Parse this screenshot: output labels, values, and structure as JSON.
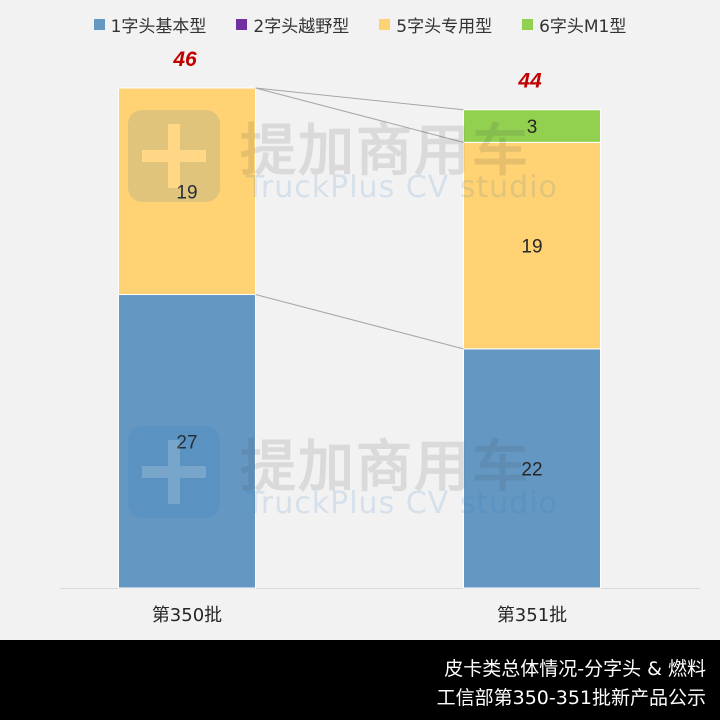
{
  "chart_data": {
    "type": "bar",
    "stacked": true,
    "categories": [
      "第350批",
      "第351批"
    ],
    "series": [
      {
        "name": "1字头基本型",
        "values": [
          27,
          22
        ],
        "color": "#6498c3"
      },
      {
        "name": "2字头越野型",
        "values": [
          0,
          0
        ],
        "color": "#7030a0"
      },
      {
        "name": "5字头专用型",
        "values": [
          19,
          19
        ],
        "color": "#ffd273"
      },
      {
        "name": "6字头M1型",
        "values": [
          0,
          3
        ],
        "color": "#92d050"
      }
    ],
    "totals": [
      46,
      44
    ],
    "total_color": "#c00000",
    "legend_position": "top",
    "grid": false,
    "ylim": [
      0,
      50
    ]
  },
  "footer": {
    "line1": "皮卡类总体情况-分字头 & 燃料",
    "line2": "工信部第350-351批新产品公示"
  },
  "watermark": {
    "text_cn": "提加商用车",
    "text_en": "TruckPlus CV studio"
  }
}
